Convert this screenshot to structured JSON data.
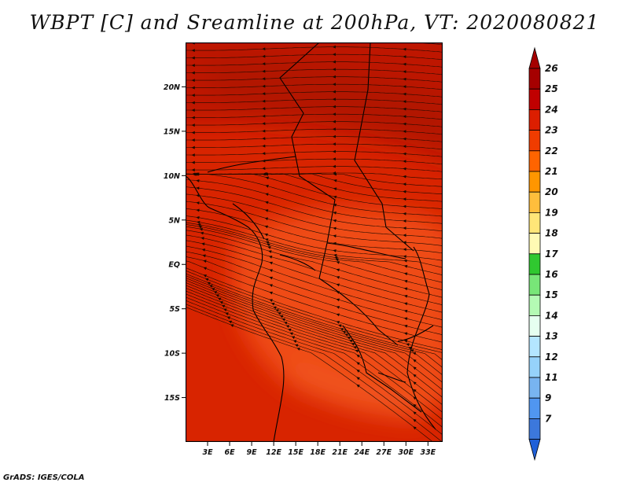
{
  "title": "WBPT [C] and Sreamline at 200hPa, VT: 2020080821",
  "footer": "GrADS: IGES/COLA",
  "map": {
    "lon_range": [
      0,
      35
    ],
    "lat_range": [
      -20,
      25
    ],
    "lat_ticks": [
      {
        "value": 20,
        "label": "20N"
      },
      {
        "value": 15,
        "label": "15N"
      },
      {
        "value": 10,
        "label": "10N"
      },
      {
        "value": 5,
        "label": "5N"
      },
      {
        "value": 0,
        "label": "EQ"
      },
      {
        "value": -5,
        "label": "5S"
      },
      {
        "value": -10,
        "label": "10S"
      },
      {
        "value": -15,
        "label": "15S"
      }
    ],
    "lon_ticks": [
      {
        "value": 3,
        "label": "3E"
      },
      {
        "value": 6,
        "label": "6E"
      },
      {
        "value": 9,
        "label": "9E"
      },
      {
        "value": 12,
        "label": "12E"
      },
      {
        "value": 15,
        "label": "15E"
      },
      {
        "value": 18,
        "label": "18E"
      },
      {
        "value": 21,
        "label": "21E"
      },
      {
        "value": 24,
        "label": "24E"
      },
      {
        "value": 27,
        "label": "27E"
      },
      {
        "value": 30,
        "label": "30E"
      },
      {
        "value": 33,
        "label": "33E"
      }
    ]
  },
  "colorbar": {
    "levels": [
      {
        "label": "26",
        "color": "#a50000"
      },
      {
        "label": "25",
        "color": "#c00000"
      },
      {
        "label": "24",
        "color": "#dc1e00"
      },
      {
        "label": "23",
        "color": "#f03c00"
      },
      {
        "label": "22",
        "color": "#ff6400"
      },
      {
        "label": "21",
        "color": "#ff9600"
      },
      {
        "label": "20",
        "color": "#ffbe3c"
      },
      {
        "label": "19",
        "color": "#ffe678"
      },
      {
        "label": "18",
        "color": "#fffab4"
      },
      {
        "label": "17",
        "color": "#30c830"
      },
      {
        "label": "16",
        "color": "#78e678"
      },
      {
        "label": "15",
        "color": "#b4fab4"
      },
      {
        "label": "14",
        "color": "#e6fff0"
      },
      {
        "label": "13",
        "color": "#b4e6ff"
      },
      {
        "label": "12",
        "color": "#96d2fa"
      },
      {
        "label": "11",
        "color": "#78b4f0"
      },
      {
        "label": "9",
        "color": "#5096f0"
      },
      {
        "label": "7",
        "color": "#3c78dc"
      }
    ],
    "bottom_color": "#2060d8"
  },
  "colors": {
    "field_base": "#d82400",
    "warm_band": "#c41a00",
    "cool_band": "#ee4a12",
    "streamline": "#1a0a00",
    "border": "#000000"
  }
}
